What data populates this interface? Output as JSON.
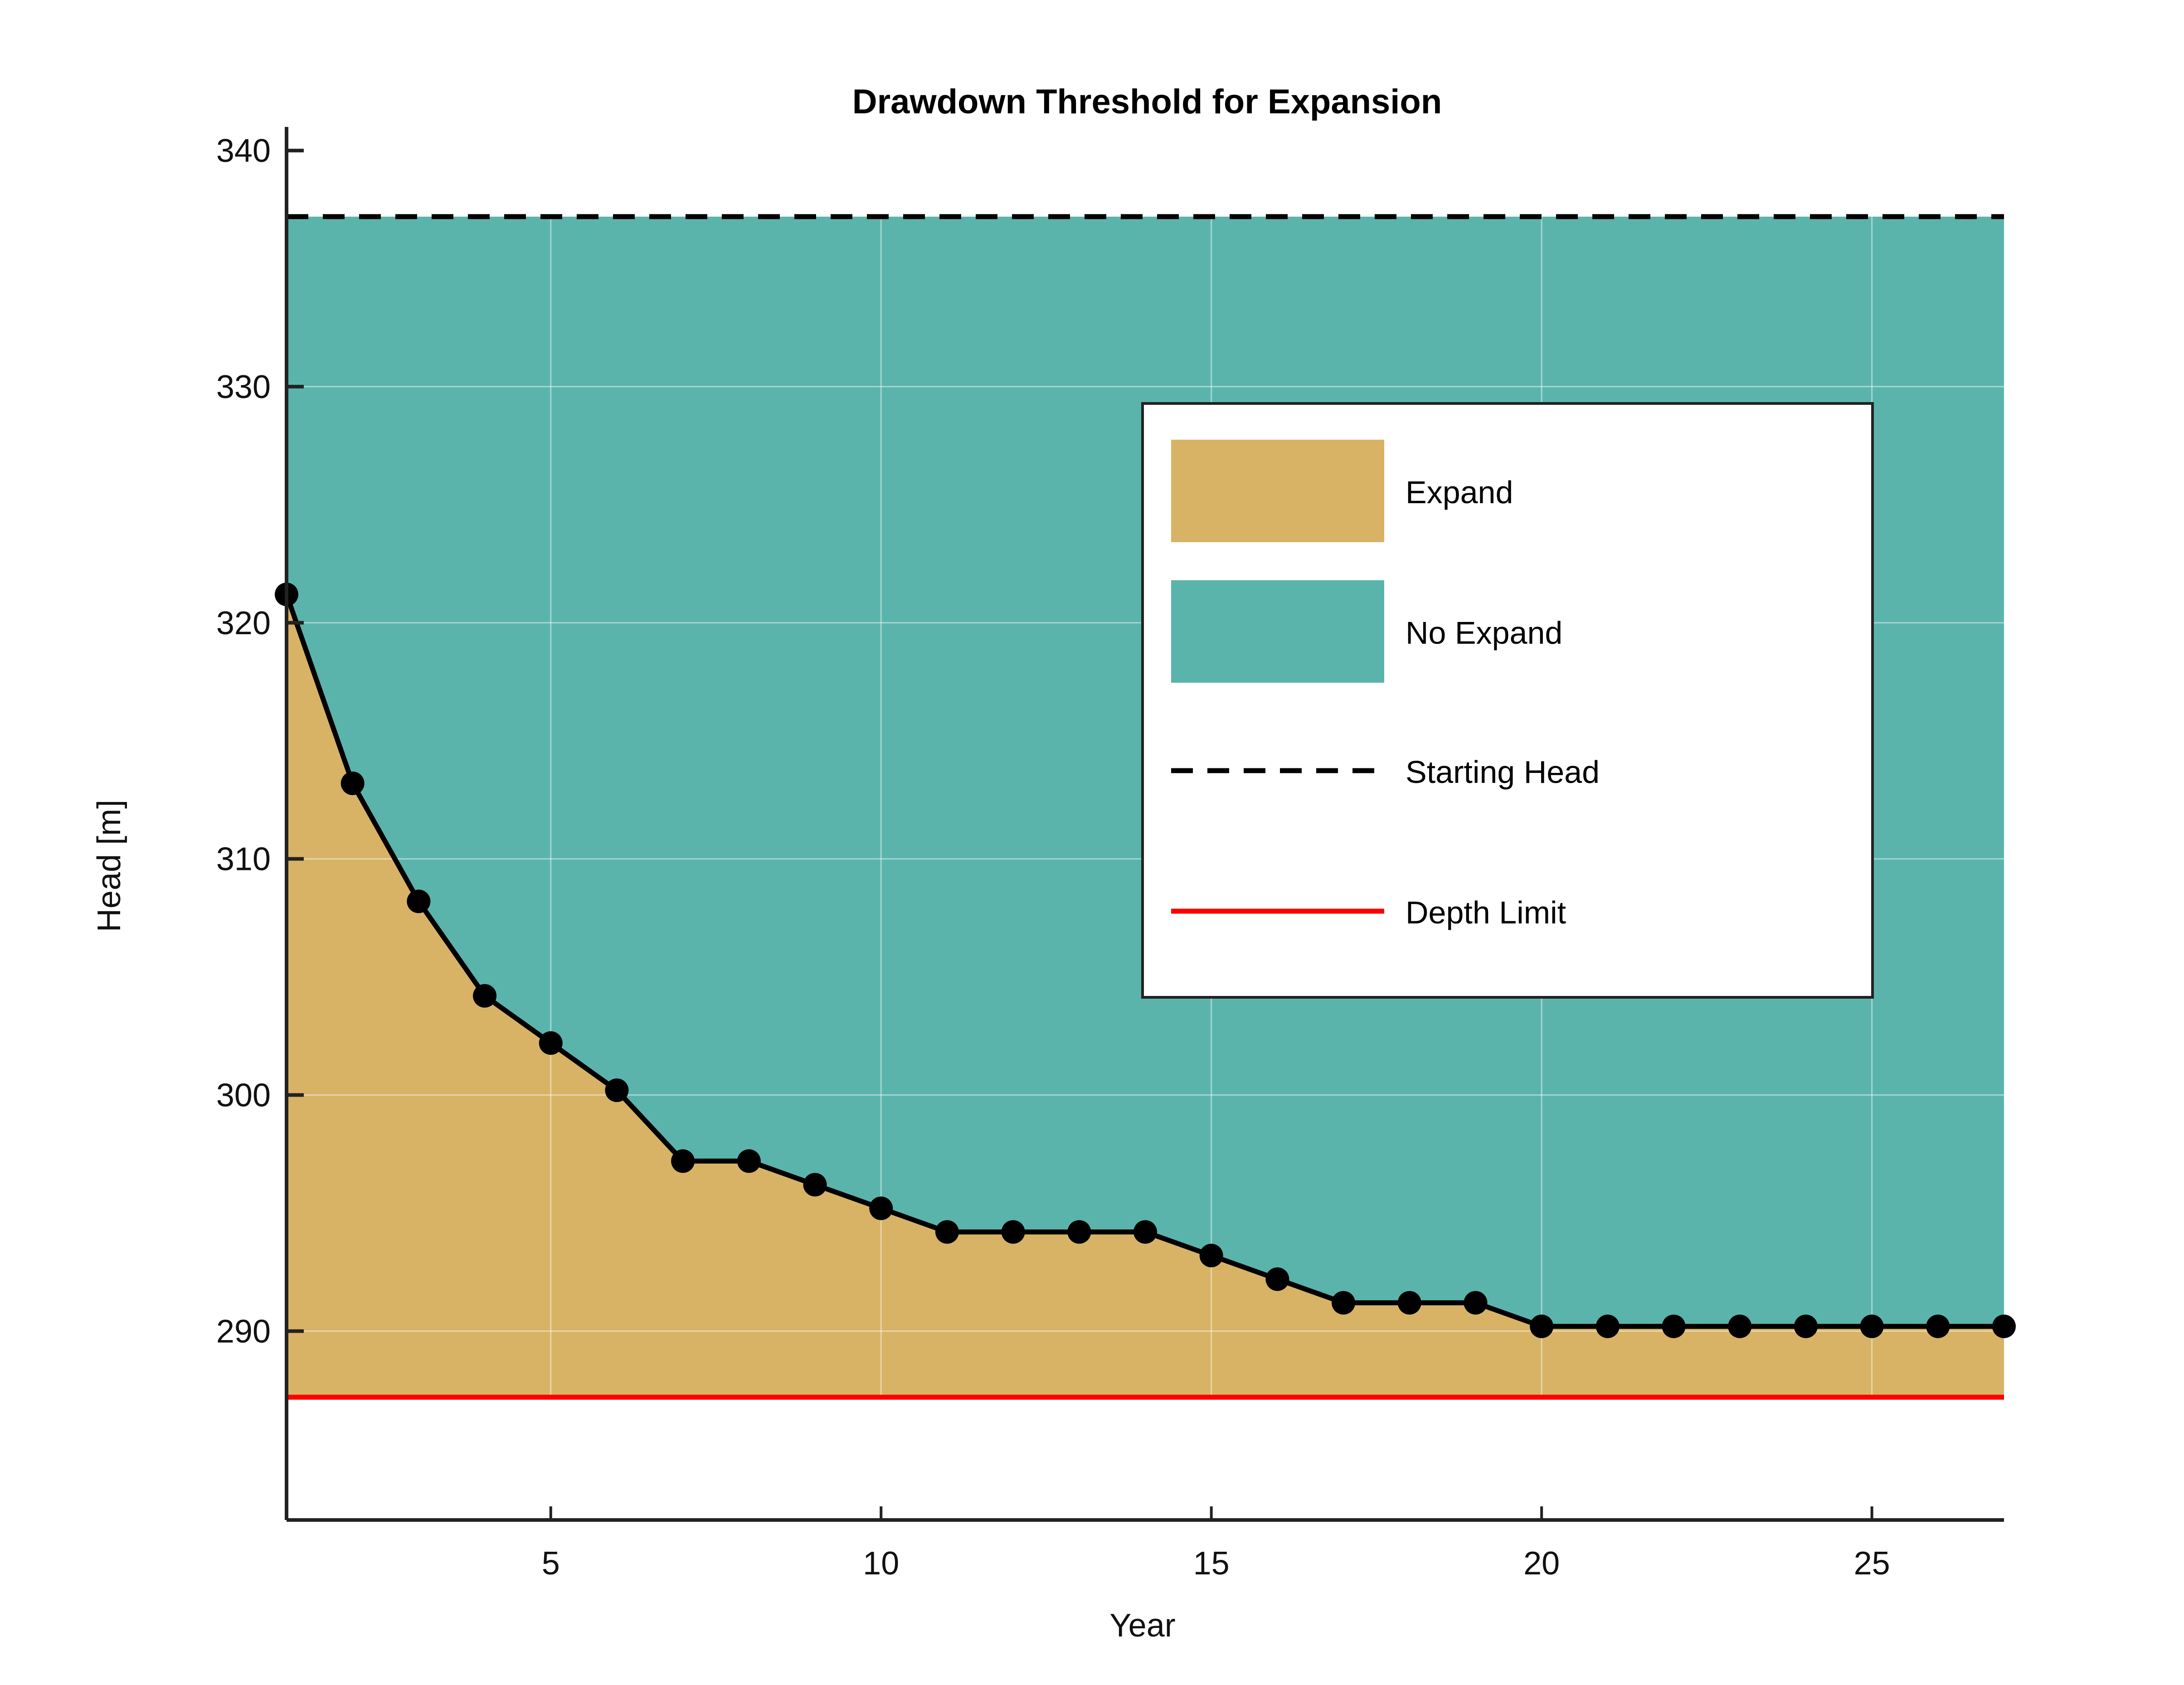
{
  "chart_data": {
    "type": "area",
    "title": "Drawdown Threshold for Expansion",
    "xlabel": "Year",
    "ylabel": "Head [m]",
    "xlim": [
      1,
      27
    ],
    "ylim": [
      282,
      341
    ],
    "x_ticks": [
      5,
      10,
      15,
      20,
      25
    ],
    "y_ticks": [
      290,
      300,
      310,
      320,
      330,
      340
    ],
    "grid": true,
    "legend_position": "top-right",
    "starting_head": 337.2,
    "depth_limit": 287.2,
    "x": [
      1,
      2,
      3,
      4,
      5,
      6,
      7,
      8,
      9,
      10,
      11,
      12,
      13,
      14,
      15,
      16,
      17,
      18,
      19,
      20,
      21,
      22,
      23,
      24,
      25,
      26,
      27
    ],
    "threshold": [
      321.2,
      313.2,
      308.2,
      304.2,
      302.2,
      300.2,
      297.2,
      297.2,
      296.2,
      295.2,
      294.2,
      294.2,
      294.2,
      294.2,
      293.2,
      292.2,
      291.2,
      291.2,
      291.2,
      290.2,
      290.2,
      290.2,
      290.2,
      290.2,
      290.2,
      290.2,
      290.2
    ],
    "colors": {
      "expand": "#d8b365",
      "no_expand": "#5ab4ac",
      "starting_head": "#000000",
      "depth_limit": "#ff0000"
    },
    "legend": [
      {
        "label": "Expand",
        "kind": "patch",
        "color": "#d8b365"
      },
      {
        "label": "No Expand",
        "kind": "patch",
        "color": "#5ab4ac"
      },
      {
        "label": "Starting Head",
        "kind": "dashed-line",
        "color": "#000000"
      },
      {
        "label": "Depth Limit",
        "kind": "line",
        "color": "#ff0000"
      }
    ]
  }
}
